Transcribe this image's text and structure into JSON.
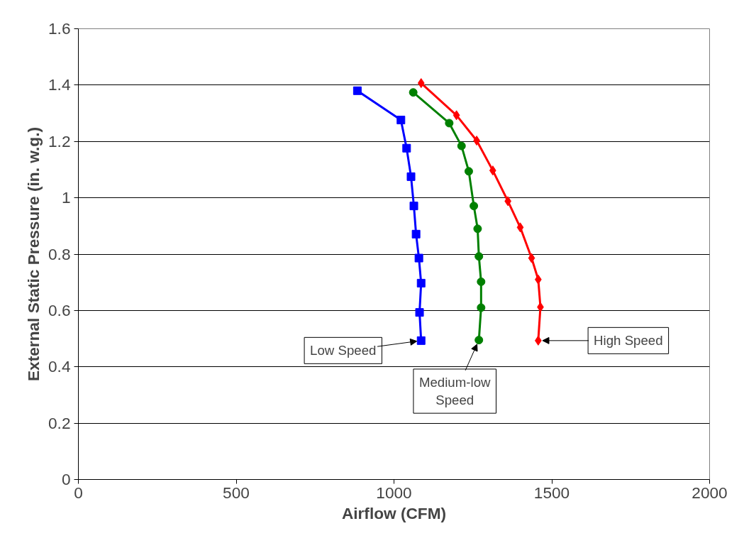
{
  "chart_data": {
    "type": "line",
    "xlabel": "Airflow (CFM)",
    "ylabel": "External Static Pressure (in. w.g.)",
    "xlim": [
      0,
      2000
    ],
    "xticks": [
      0,
      500,
      1000,
      1500,
      2000
    ],
    "ylim": [
      0,
      1.6
    ],
    "yticks": [
      0,
      0.2,
      0.4,
      0.6,
      0.8,
      1,
      1.2,
      1.4,
      1.6
    ],
    "grid": "y",
    "series": [
      {
        "color": "#0000ff",
        "marker": "square",
        "x": [
          884,
          1022,
          1040,
          1054,
          1063,
          1070,
          1079,
          1086,
          1081,
          1086
        ],
        "values": [
          1.38,
          1.276,
          1.176,
          1.075,
          0.971,
          0.871,
          0.786,
          0.697,
          0.593,
          0.493
        ]
      },
      {
        "color": "#008000",
        "marker": "circle",
        "x": [
          1061,
          1175,
          1214,
          1237,
          1253,
          1265,
          1269,
          1276,
          1276,
          1269
        ],
        "values": [
          1.374,
          1.265,
          1.184,
          1.094,
          0.971,
          0.89,
          0.792,
          0.702,
          0.61,
          0.495
        ]
      },
      {
        "color": "#ff0000",
        "marker": "diamond",
        "x": [
          1086,
          1198,
          1262,
          1313,
          1361,
          1400,
          1436,
          1457,
          1464,
          1457
        ],
        "values": [
          1.407,
          1.293,
          1.203,
          1.097,
          0.988,
          0.895,
          0.786,
          0.71,
          0.612,
          0.493
        ]
      }
    ],
    "annotations": [
      {
        "text": "Low Speed",
        "x": 1086,
        "y": 0.493
      },
      {
        "text": "Medium-low Speed",
        "x": 1269,
        "y": 0.495
      },
      {
        "text": "High Speed",
        "x": 1457,
        "y": 0.493
      }
    ]
  }
}
